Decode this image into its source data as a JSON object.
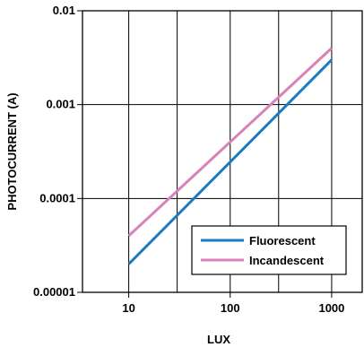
{
  "chart_data": {
    "type": "line",
    "xlabel": "LUX",
    "ylabel": "PHOTOCURRENT (A)",
    "xscale": "log",
    "yscale": "log",
    "xlim": [
      3.5,
      2000
    ],
    "ylim": [
      1e-05,
      0.01
    ],
    "x_ticks": [
      10,
      100,
      1000
    ],
    "x_tick_labels": [
      "10",
      "100",
      "1000"
    ],
    "y_ticks": [
      1e-05,
      0.0001,
      0.001,
      0.01
    ],
    "y_tick_labels": [
      "0.00001",
      "0.0001",
      "0.001",
      "0.01"
    ],
    "grid": true,
    "legend_position": "bottom-right",
    "series": [
      {
        "name": "Fluorescent",
        "color": "#1a7cc0",
        "x": [
          10,
          1000
        ],
        "y": [
          2e-05,
          0.003
        ]
      },
      {
        "name": "Incandescent",
        "color": "#d982b8",
        "x": [
          10,
          1000
        ],
        "y": [
          4e-05,
          0.004
        ]
      }
    ]
  }
}
